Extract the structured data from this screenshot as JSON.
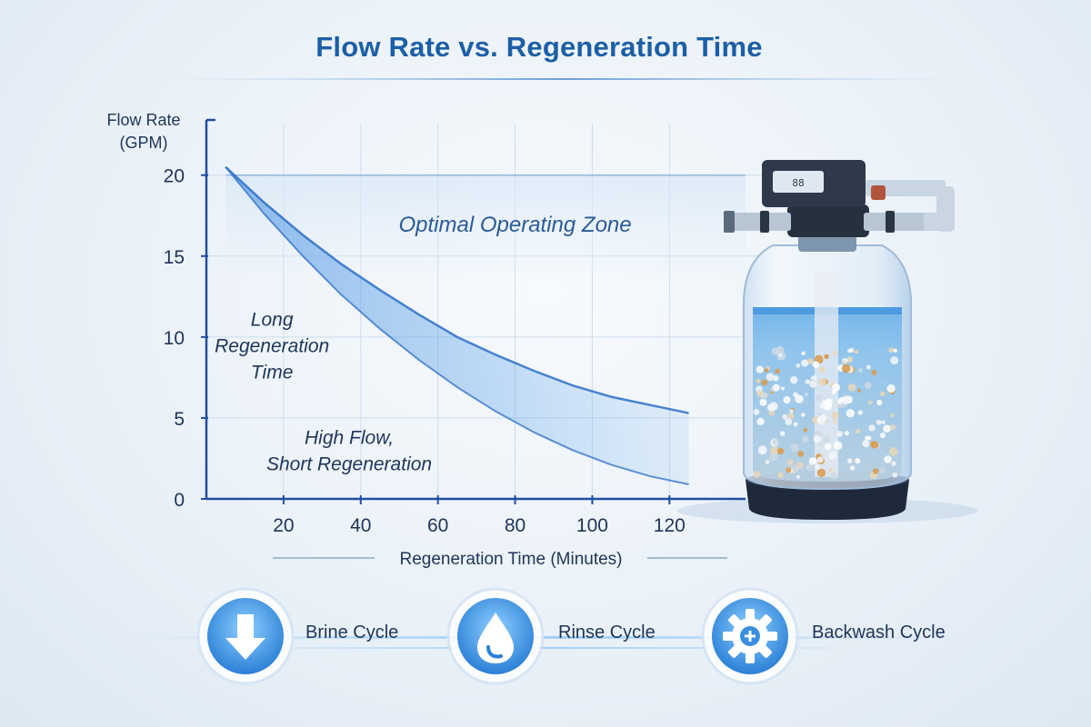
{
  "chart_data": {
    "type": "line",
    "title": "Flow Rate vs. Regeneration Time",
    "ylabel_line1": "Flow Rate",
    "ylabel_line2": "(GPM)",
    "xlabel": "Regeneration Time (Minutes)",
    "x_ticks": [
      20,
      40,
      60,
      80,
      100,
      120
    ],
    "y_ticks": [
      0,
      5,
      10,
      15,
      20
    ],
    "xlim": [
      0,
      135
    ],
    "ylim": [
      0,
      21.5
    ],
    "grid": true,
    "series": [
      {
        "style": "upper-curve",
        "points": [
          [
            5,
            20.5
          ],
          [
            15,
            18.3
          ],
          [
            25,
            16.3
          ],
          [
            35,
            14.5
          ],
          [
            45,
            12.9
          ],
          [
            55,
            11.4
          ],
          [
            65,
            10.0
          ],
          [
            75,
            8.9
          ],
          [
            85,
            7.9
          ],
          [
            95,
            7.0
          ],
          [
            105,
            6.3
          ],
          [
            115,
            5.8
          ],
          [
            125,
            5.3
          ]
        ]
      },
      {
        "style": "lower-curve",
        "points": [
          [
            5,
            20.5
          ],
          [
            15,
            17.6
          ],
          [
            25,
            15.0
          ],
          [
            35,
            12.6
          ],
          [
            45,
            10.5
          ],
          [
            55,
            8.6
          ],
          [
            65,
            6.9
          ],
          [
            75,
            5.4
          ],
          [
            85,
            4.1
          ],
          [
            95,
            3.0
          ],
          [
            105,
            2.1
          ],
          [
            115,
            1.4
          ],
          [
            125,
            0.9
          ]
        ]
      }
    ],
    "annotations": [
      {
        "text": "Optimal Operating Zone",
        "x": 80,
        "y": 16.5
      },
      {
        "lines": [
          "Long",
          "Regeneration",
          "Time"
        ],
        "x": 17,
        "y": 10.7
      },
      {
        "lines": [
          "High Flow,",
          "Short Regeneration"
        ],
        "x": 37,
        "y": 3.4
      }
    ]
  },
  "cycles": [
    {
      "label": "Brine Cycle",
      "icon": "arrow-down-icon"
    },
    {
      "label": "Rinse Cycle",
      "icon": "water-drop-icon"
    },
    {
      "label": "Backwash Cycle",
      "icon": "gear-icon"
    }
  ],
  "colors": {
    "title": "#1c5fa6",
    "axis": "#1f4fa0",
    "curve": "#2d6fc7",
    "curve_fill": "#4b93e0",
    "text_dark": "#1e3558",
    "tank_base": "#1e2a3c"
  }
}
